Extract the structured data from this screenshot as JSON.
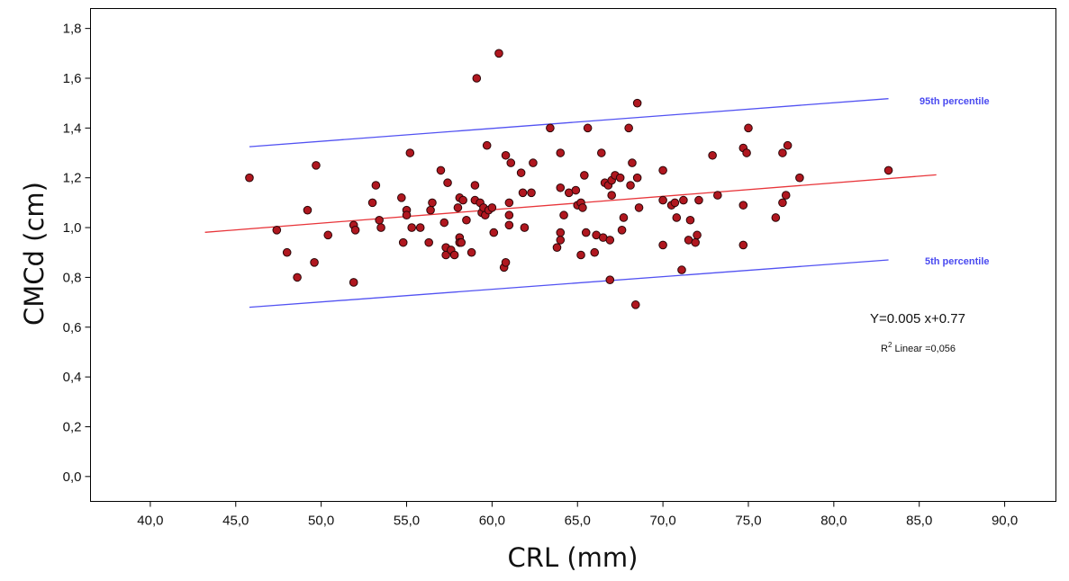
{
  "chart_data": {
    "type": "scatter",
    "xlabel": "CRL (mm)",
    "ylabel": "CMCd (cm)",
    "xlim": [
      36.5,
      93.0
    ],
    "ylim": [
      -0.1,
      1.88
    ],
    "x_ticks": [
      "40,0",
      "45,0",
      "50,0",
      "55,0",
      "60,0",
      "65,0",
      "70,0",
      "75,0",
      "80,0",
      "85,0",
      "90,0"
    ],
    "x_tick_values": [
      40,
      45,
      50,
      55,
      60,
      65,
      70,
      75,
      80,
      85,
      90
    ],
    "y_ticks": [
      "0,0",
      "0,2",
      "0,4",
      "0,6",
      "0,8",
      "1,0",
      "1,2",
      "1,4",
      "1,6",
      "1,8"
    ],
    "y_tick_values": [
      0.0,
      0.2,
      0.4,
      0.6,
      0.8,
      1.0,
      1.2,
      1.4,
      1.6,
      1.8
    ],
    "grid": false,
    "marker_color": "#b0171f",
    "regression_color": "#e8353a",
    "percentile_color": "#5252f2",
    "points": [
      [
        45.8,
        1.2
      ],
      [
        47.4,
        0.99
      ],
      [
        48.0,
        0.9
      ],
      [
        48.6,
        0.8
      ],
      [
        49.2,
        1.07
      ],
      [
        49.6,
        0.86
      ],
      [
        49.7,
        1.25
      ],
      [
        50.4,
        0.97
      ],
      [
        51.9,
        1.01
      ],
      [
        51.9,
        0.78
      ],
      [
        52.0,
        0.99
      ],
      [
        53.0,
        1.1
      ],
      [
        53.2,
        1.17
      ],
      [
        53.4,
        1.03
      ],
      [
        53.5,
        1.0
      ],
      [
        54.7,
        1.12
      ],
      [
        54.8,
        0.94
      ],
      [
        55.0,
        1.07
      ],
      [
        55.0,
        1.05
      ],
      [
        55.2,
        1.3
      ],
      [
        55.3,
        1.0
      ],
      [
        55.8,
        1.0
      ],
      [
        56.3,
        0.94
      ],
      [
        56.4,
        1.07
      ],
      [
        56.5,
        1.1
      ],
      [
        57.0,
        1.23
      ],
      [
        57.2,
        1.02
      ],
      [
        57.3,
        0.89
      ],
      [
        57.3,
        0.92
      ],
      [
        57.4,
        1.18
      ],
      [
        57.6,
        0.91
      ],
      [
        57.8,
        0.89
      ],
      [
        58.0,
        1.08
      ],
      [
        58.1,
        1.12
      ],
      [
        58.1,
        0.96
      ],
      [
        58.1,
        0.94
      ],
      [
        58.2,
        0.94
      ],
      [
        58.3,
        1.11
      ],
      [
        58.5,
        1.03
      ],
      [
        58.8,
        0.9
      ],
      [
        59.0,
        1.17
      ],
      [
        59.0,
        1.11
      ],
      [
        59.1,
        1.6
      ],
      [
        59.3,
        1.1
      ],
      [
        59.4,
        1.06
      ],
      [
        59.5,
        1.08
      ],
      [
        59.6,
        1.05
      ],
      [
        59.7,
        1.33
      ],
      [
        59.8,
        1.07
      ],
      [
        60.0,
        1.08
      ],
      [
        60.1,
        0.98
      ],
      [
        60.4,
        1.7
      ],
      [
        60.7,
        0.84
      ],
      [
        60.8,
        0.86
      ],
      [
        60.8,
        1.29
      ],
      [
        61.0,
        1.1
      ],
      [
        61.0,
        1.05
      ],
      [
        61.0,
        1.01
      ],
      [
        61.1,
        1.26
      ],
      [
        61.7,
        1.22
      ],
      [
        61.8,
        1.14
      ],
      [
        61.9,
        1.0
      ],
      [
        62.3,
        1.14
      ],
      [
        62.4,
        1.26
      ],
      [
        63.4,
        1.4
      ],
      [
        63.8,
        0.92
      ],
      [
        64.0,
        1.3
      ],
      [
        64.0,
        1.16
      ],
      [
        64.0,
        0.98
      ],
      [
        64.0,
        0.95
      ],
      [
        64.2,
        1.05
      ],
      [
        64.5,
        1.14
      ],
      [
        64.9,
        1.15
      ],
      [
        65.0,
        1.09
      ],
      [
        65.2,
        0.89
      ],
      [
        65.2,
        1.1
      ],
      [
        65.3,
        1.08
      ],
      [
        65.4,
        1.21
      ],
      [
        65.5,
        0.98
      ],
      [
        65.6,
        1.4
      ],
      [
        66.0,
        0.9
      ],
      [
        66.1,
        0.97
      ],
      [
        66.4,
        1.3
      ],
      [
        66.5,
        0.96
      ],
      [
        66.6,
        1.18
      ],
      [
        66.8,
        1.17
      ],
      [
        66.9,
        0.95
      ],
      [
        66.9,
        0.79
      ],
      [
        67.0,
        1.19
      ],
      [
        67.0,
        1.13
      ],
      [
        67.2,
        1.21
      ],
      [
        67.5,
        1.2
      ],
      [
        67.6,
        0.99
      ],
      [
        67.7,
        1.04
      ],
      [
        68.0,
        1.4
      ],
      [
        68.1,
        1.17
      ],
      [
        68.2,
        1.26
      ],
      [
        68.4,
        0.69
      ],
      [
        68.5,
        1.5
      ],
      [
        68.5,
        1.2
      ],
      [
        68.6,
        1.08
      ],
      [
        70.0,
        1.23
      ],
      [
        70.0,
        1.11
      ],
      [
        70.0,
        0.93
      ],
      [
        70.5,
        1.09
      ],
      [
        70.7,
        1.1
      ],
      [
        70.8,
        1.04
      ],
      [
        71.1,
        0.83
      ],
      [
        71.2,
        1.11
      ],
      [
        71.5,
        0.95
      ],
      [
        71.6,
        1.03
      ],
      [
        71.9,
        0.94
      ],
      [
        72.0,
        0.97
      ],
      [
        72.1,
        1.11
      ],
      [
        72.9,
        1.29
      ],
      [
        73.2,
        1.13
      ],
      [
        74.7,
        1.32
      ],
      [
        74.7,
        1.09
      ],
      [
        74.7,
        0.93
      ],
      [
        74.9,
        1.3
      ],
      [
        75.0,
        1.4
      ],
      [
        76.6,
        1.04
      ],
      [
        77.0,
        1.1
      ],
      [
        77.0,
        1.3
      ],
      [
        77.2,
        1.13
      ],
      [
        77.3,
        1.33
      ],
      [
        78.0,
        1.2
      ],
      [
        83.2,
        1.23
      ]
    ],
    "regression_line": {
      "x": [
        43.2,
        86.0
      ],
      "y": [
        0.981,
        1.212
      ]
    },
    "percentile_lines": [
      {
        "name": "95th percentile",
        "x": [
          45.8,
          83.2
        ],
        "y": [
          1.325,
          1.518
        ]
      },
      {
        "name": "5th percentile",
        "x": [
          45.8,
          83.2
        ],
        "y": [
          0.68,
          0.87
        ]
      }
    ],
    "annotations": {
      "p95_label": "95th percentile",
      "p5_label": "5th percentile",
      "equation": "Y=0.005 x+0.77",
      "r2_label_main": "R",
      "r2_label_sup": "2",
      "r2_label_rest": " Linear =0,056"
    }
  }
}
